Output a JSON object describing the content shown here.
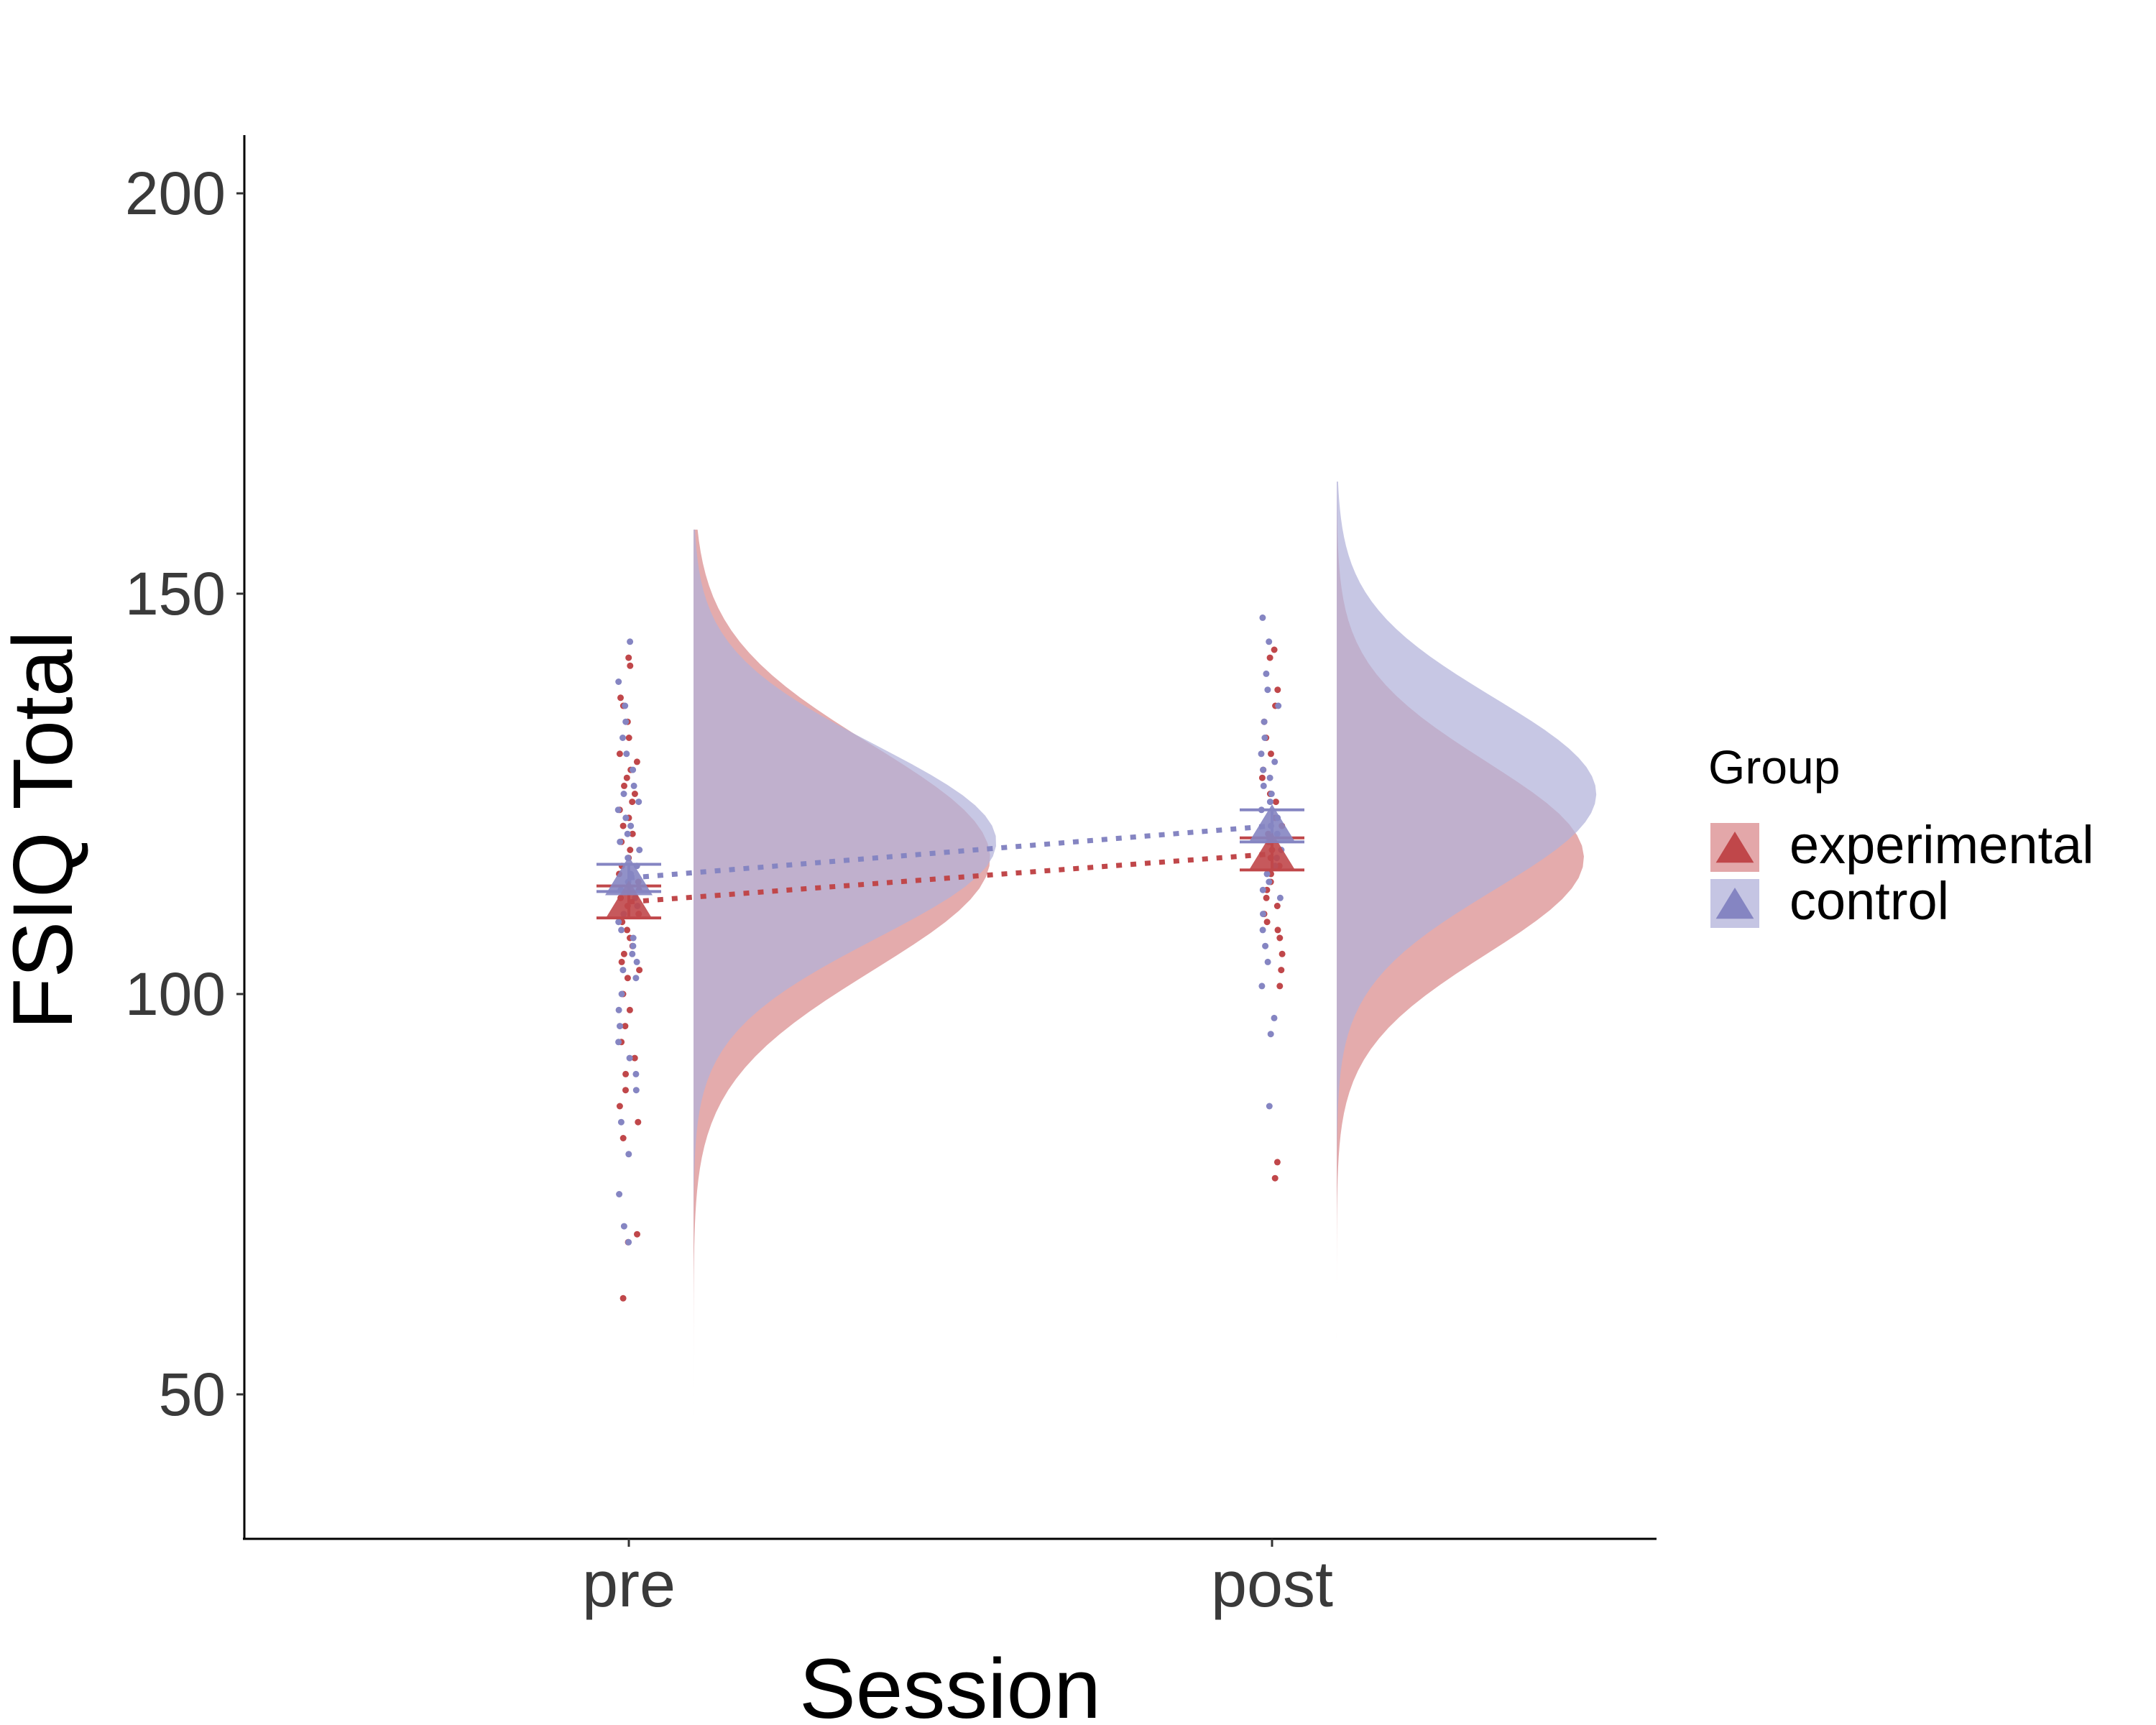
{
  "chart_data": {
    "type": "raincloud",
    "xlabel": "Session",
    "ylabel": "FSIQ Total",
    "categories": [
      "pre",
      "post"
    ],
    "ylim": [
      32,
      208
    ],
    "yticks": [
      50,
      100,
      150,
      200
    ],
    "grid": false,
    "legend": {
      "title": "Group",
      "placement": "right",
      "entries": [
        "experimental",
        "control"
      ]
    },
    "series": [
      {
        "name": "experimental",
        "color": "#c0474a",
        "fill": "#d98a8c",
        "means": [
          111.5,
          117.5
        ],
        "error_low": [
          109.5,
          115.5
        ],
        "error_high": [
          113.5,
          119.5
        ],
        "density_range": [
          [
            46,
            158
          ],
          [
            57,
            164
          ]
        ],
        "density_peak_y": [
          117,
          117
        ],
        "density_peak_width": [
          0.48,
          0.4
        ],
        "density_sd": [
          14,
          12
        ],
        "points": [
          [
            142,
            141,
            137,
            136,
            134,
            132,
            130,
            129,
            128,
            127,
            126,
            125,
            124,
            123,
            122,
            121,
            120,
            119,
            118,
            117,
            116,
            115,
            114,
            113,
            112,
            111,
            110,
            109,
            108,
            107,
            106,
            105,
            104,
            103,
            102,
            100,
            98,
            96,
            94,
            92,
            90,
            88,
            86,
            84,
            82,
            70,
            69,
            62
          ],
          [
            143,
            142,
            138,
            136,
            134,
            132,
            130,
            128,
            127,
            125,
            124,
            122,
            121,
            120,
            119,
            118,
            117,
            116,
            115,
            114,
            113,
            112,
            111,
            110,
            109,
            108,
            107,
            105,
            103,
            101,
            79,
            77
          ]
        ]
      },
      {
        "name": "control",
        "color": "#8585c2",
        "fill": "#b2b2da",
        "means": [
          114.5,
          121.0
        ],
        "error_low": [
          112.8,
          119.0
        ],
        "error_high": [
          116.2,
          123.0
        ],
        "density_range": [
          [
            56,
            158
          ],
          [
            72,
            164
          ]
        ],
        "density_peak_y": [
          119,
          125
        ],
        "density_peak_width": [
          0.49,
          0.42
        ],
        "density_sd": [
          12,
          12
        ],
        "points": [
          [
            144,
            139,
            136,
            134,
            132,
            130,
            128,
            126,
            125,
            124,
            123,
            122,
            121,
            120,
            119,
            118,
            117,
            116,
            115,
            114,
            113,
            112,
            111,
            110,
            109,
            108,
            107,
            106,
            105,
            104,
            103,
            102,
            100,
            98,
            96,
            94,
            92,
            90,
            88,
            84,
            80,
            75,
            71,
            69
          ],
          [
            147,
            144,
            140,
            138,
            136,
            134,
            132,
            130,
            129,
            128,
            127,
            126,
            125,
            124,
            123,
            122,
            121,
            120,
            119,
            118,
            117,
            116,
            115,
            114,
            113,
            112,
            110,
            108,
            106,
            104,
            101,
            97,
            95,
            86
          ]
        ]
      }
    ]
  }
}
